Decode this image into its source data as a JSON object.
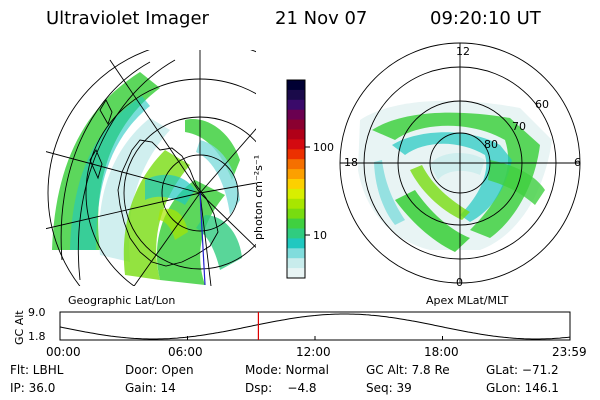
{
  "header": {
    "instrument": "Ultraviolet Imager",
    "date": "21 Nov 07",
    "time": "09:20:10 UT"
  },
  "left_panel": {
    "caption": "Geographic Lat/Lon"
  },
  "right_panel": {
    "caption": "Apex MLat/MLT",
    "mlt_labels": [
      "12",
      "18",
      "6",
      "0"
    ],
    "lat_labels": [
      "60",
      "70",
      "80"
    ]
  },
  "colorbar": {
    "unit_label": "photon cm⁻²s⁻¹",
    "tick_labels": [
      "100",
      "10"
    ],
    "colors": [
      "#000033",
      "#1a0a4a",
      "#3a0a6a",
      "#6a0050",
      "#8a0030",
      "#b00018",
      "#d40a10",
      "#ec3000",
      "#f57000",
      "#fca000",
      "#fcd000",
      "#d8ee00",
      "#a8e600",
      "#78dc10",
      "#40d040",
      "#30cc80",
      "#20c8c0",
      "#80dcdc",
      "#c8ecec",
      "#e8f4f4"
    ]
  },
  "timeline": {
    "ylabel": "GC Alt",
    "y_top_label": "9.0",
    "y_bottom_label": "1.8",
    "time_labels": [
      "00:00",
      "06:00",
      "12:00",
      "18:00",
      "23:59"
    ],
    "marker_time_hours": 9.336,
    "marker_color": "#dd0000"
  },
  "status": {
    "row1": {
      "filter": "Flt: LBHL",
      "door": "Door: Open",
      "mode": "Mode: Normal",
      "gc_alt": "GC Alt: 7.8 Re",
      "glat": "GLat: −71.2"
    },
    "row2": {
      "ip": "IP: 36.0",
      "gain": "Gain: 14",
      "dsp": "Dsp:    −4.8",
      "seq": "Seq: 39",
      "glon": "GLon: 146.1"
    }
  }
}
